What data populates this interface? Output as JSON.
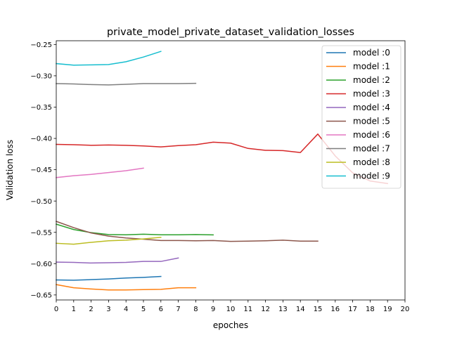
{
  "chart_data": {
    "type": "line",
    "title": "private_model_private_dataset_validation_losses",
    "xlabel": "epoches",
    "ylabel": "Validation loss",
    "xlim": [
      0,
      20
    ],
    "ylim": [
      -0.658,
      -0.244
    ],
    "x_ticks": [
      0,
      1,
      2,
      3,
      4,
      5,
      6,
      7,
      8,
      9,
      10,
      11,
      12,
      13,
      14,
      15,
      16,
      17,
      18,
      19,
      20
    ],
    "y_ticks": [
      -0.65,
      -0.6,
      -0.55,
      -0.5,
      -0.45,
      -0.4,
      -0.35,
      -0.3,
      -0.25
    ],
    "y_tick_labels": [
      "−0.65",
      "−0.60",
      "−0.55",
      "−0.50",
      "−0.45",
      "−0.40",
      "−0.35",
      "−0.30",
      "−0.25"
    ],
    "grid": false,
    "legend_position": "top-right",
    "series": [
      {
        "name": "model :0",
        "color": "#1f77b4",
        "x": [
          0,
          1,
          2,
          3,
          4,
          5,
          6
        ],
        "y": [
          -0.626,
          -0.6265,
          -0.6255,
          -0.6245,
          -0.623,
          -0.622,
          -0.6205
        ]
      },
      {
        "name": "model :1",
        "color": "#ff7f0e",
        "x": [
          0,
          1,
          2,
          3,
          4,
          5,
          6,
          7,
          8
        ],
        "y": [
          -0.6335,
          -0.6385,
          -0.6405,
          -0.642,
          -0.642,
          -0.6415,
          -0.641,
          -0.6385,
          -0.6385
        ]
      },
      {
        "name": "model :2",
        "color": "#2ca02c",
        "x": [
          0,
          1,
          2,
          3,
          4,
          5,
          6,
          7,
          8,
          9
        ],
        "y": [
          -0.537,
          -0.5455,
          -0.5505,
          -0.5535,
          -0.554,
          -0.553,
          -0.554,
          -0.554,
          -0.5535,
          -0.554
        ]
      },
      {
        "name": "model :3",
        "color": "#d62728",
        "x": [
          0,
          1,
          2,
          3,
          4,
          5,
          6,
          7,
          8,
          9,
          10,
          11,
          12,
          13,
          14,
          15,
          16,
          17,
          18,
          19
        ],
        "y": [
          -0.4095,
          -0.41,
          -0.411,
          -0.4105,
          -0.411,
          -0.412,
          -0.4135,
          -0.4115,
          -0.41,
          -0.406,
          -0.4075,
          -0.416,
          -0.419,
          -0.4195,
          -0.4225,
          -0.393,
          -0.428,
          -0.455,
          -0.468,
          -0.472
        ]
      },
      {
        "name": "model :4",
        "color": "#9467bd",
        "x": [
          0,
          1,
          2,
          3,
          4,
          5,
          6,
          7
        ],
        "y": [
          -0.5975,
          -0.598,
          -0.599,
          -0.5985,
          -0.598,
          -0.5965,
          -0.5965,
          -0.591
        ]
      },
      {
        "name": "model :5",
        "color": "#8c564b",
        "x": [
          0,
          1,
          2,
          3,
          4,
          5,
          6,
          7,
          8,
          9,
          10,
          11,
          12,
          13,
          14,
          15
        ],
        "y": [
          -0.5325,
          -0.5425,
          -0.551,
          -0.556,
          -0.559,
          -0.561,
          -0.563,
          -0.563,
          -0.5635,
          -0.563,
          -0.5645,
          -0.564,
          -0.5635,
          -0.5625,
          -0.564,
          -0.564
        ]
      },
      {
        "name": "model :6",
        "color": "#e377c2",
        "x": [
          0,
          1,
          2,
          3,
          4,
          5
        ],
        "y": [
          -0.4625,
          -0.4595,
          -0.4575,
          -0.4545,
          -0.4515,
          -0.4475
        ]
      },
      {
        "name": "model :7",
        "color": "#7f7f7f",
        "x": [
          0,
          1,
          2,
          3,
          4,
          5,
          6,
          7,
          8
        ],
        "y": [
          -0.3125,
          -0.313,
          -0.314,
          -0.3145,
          -0.3135,
          -0.3125,
          -0.3125,
          -0.3125,
          -0.312
        ]
      },
      {
        "name": "model :8",
        "color": "#bcbd22",
        "x": [
          0,
          1,
          2,
          3,
          4,
          5,
          6
        ],
        "y": [
          -0.5675,
          -0.569,
          -0.566,
          -0.5635,
          -0.5625,
          -0.5605,
          -0.558
        ]
      },
      {
        "name": "model :9",
        "color": "#17becf",
        "x": [
          0,
          1,
          2,
          3,
          4,
          5,
          6
        ],
        "y": [
          -0.2805,
          -0.283,
          -0.2825,
          -0.282,
          -0.2775,
          -0.27,
          -0.261
        ]
      }
    ]
  }
}
